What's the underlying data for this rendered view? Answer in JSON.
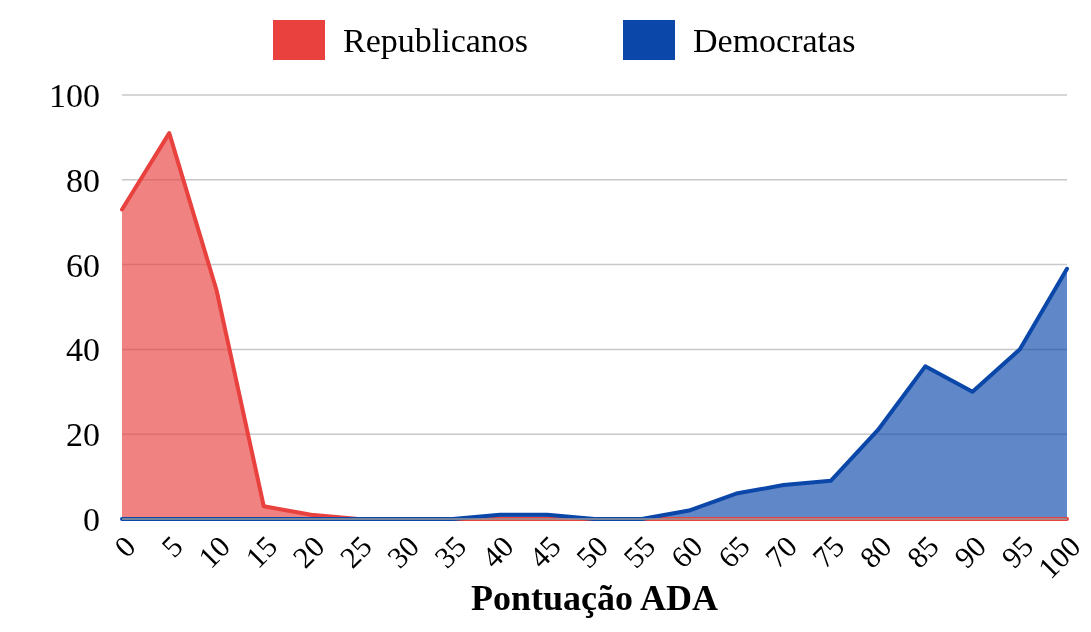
{
  "chart_data": {
    "type": "area",
    "xlabel": "Pontuação ADA",
    "categories": [
      "0",
      "5",
      "10",
      "15",
      "20",
      "25",
      "30",
      "35",
      "40",
      "45",
      "50",
      "55",
      "60",
      "65",
      "70",
      "75",
      "80",
      "85",
      "90",
      "95",
      "100"
    ],
    "series": [
      {
        "name": "Republicanos",
        "color": "#e8413e",
        "values": [
          73,
          91,
          54,
          3,
          1,
          0,
          0,
          0,
          0,
          0,
          0,
          0,
          0,
          0,
          0,
          0,
          0,
          0,
          0,
          0,
          0
        ]
      },
      {
        "name": "Democratas",
        "color": "#0a47a9",
        "values": [
          0,
          0,
          0,
          0,
          0,
          0,
          0,
          0,
          1,
          1,
          0,
          0,
          2,
          6,
          8,
          9,
          21,
          36,
          30,
          40,
          59
        ]
      }
    ],
    "ylim": [
      0,
      100
    ],
    "yticks": [
      0,
      20,
      40,
      60,
      80,
      100
    ],
    "grid": "y",
    "legend": "top"
  }
}
